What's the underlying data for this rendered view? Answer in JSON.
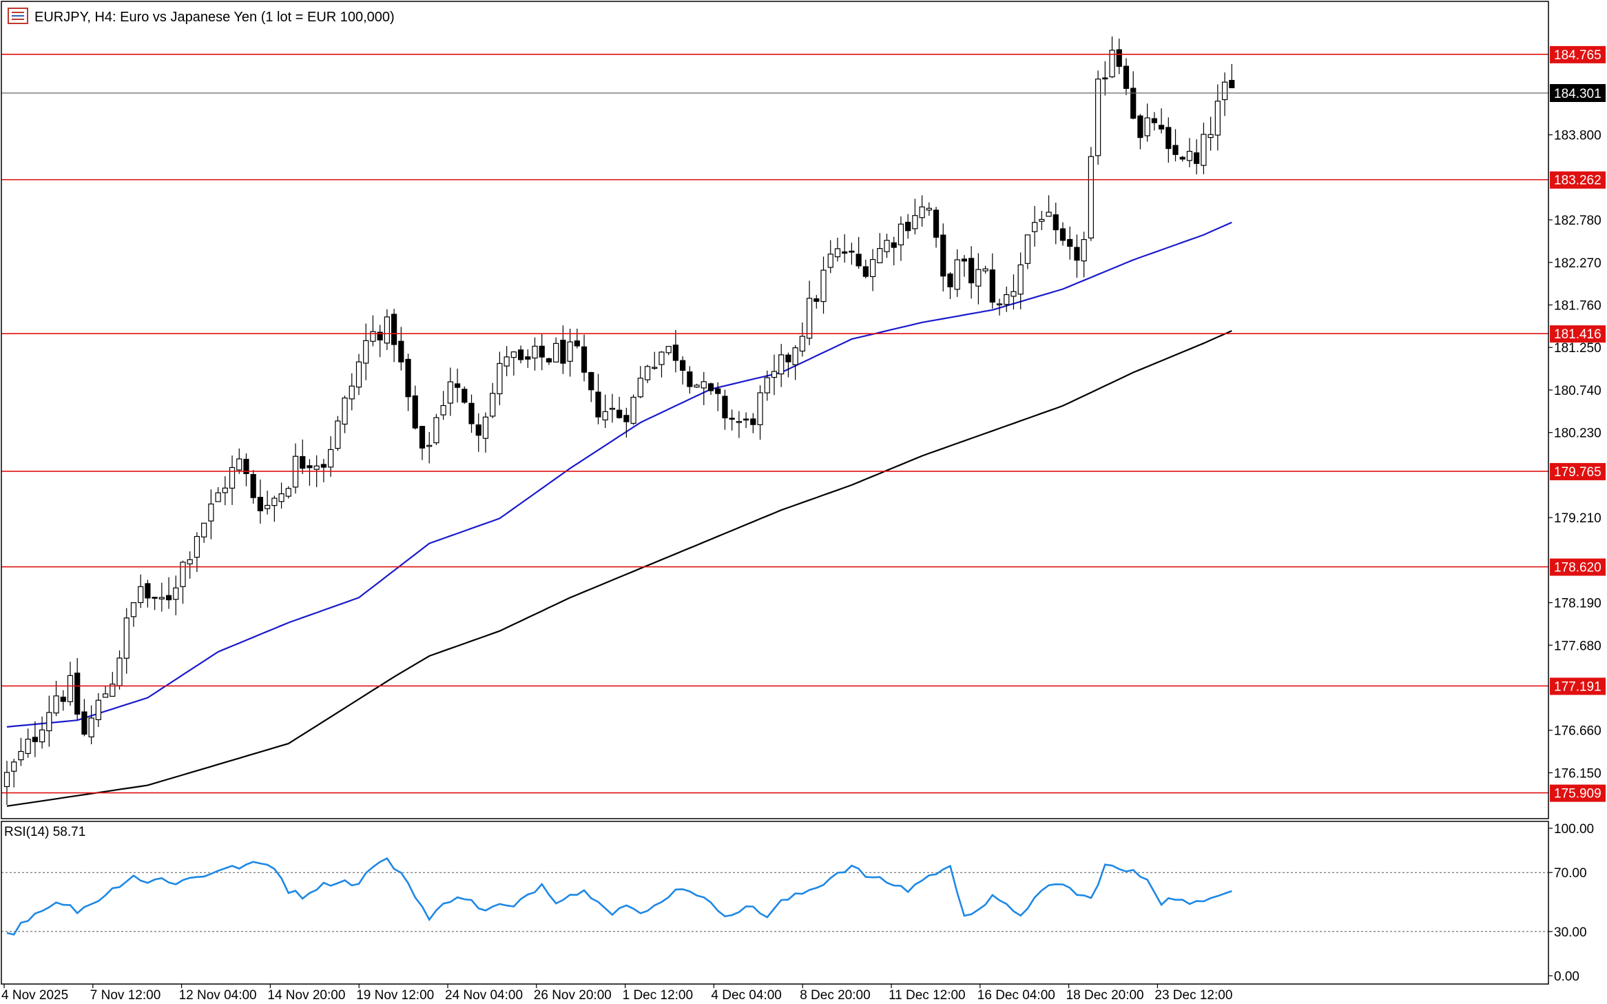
{
  "chart_data": [
    {
      "type": "candlestick",
      "title": "EURJPY, H4:  Euro vs Japanese Yen (1 lot = EUR 100,000)",
      "ylim": [
        175.6,
        185.4
      ],
      "y_ticks": [
        "176.150",
        "176.660",
        "177.680",
        "178.190",
        "179.210",
        "180.230",
        "180.740",
        "181.250",
        "181.760",
        "182.270",
        "182.780",
        "183.800"
      ],
      "x_tick_labels": [
        "4 Nov 2025",
        "7 Nov 12:00",
        "12 Nov 04:00",
        "14 Nov 20:00",
        "19 Nov 12:00",
        "24 Nov 04:00",
        "26 Nov 20:00",
        "1 Dec 12:00",
        "4 Dec 04:00",
        "8 Dec 20:00",
        "11 Dec 12:00",
        "16 Dec 04:00",
        "18 Dec 20:00",
        "23 Dec 12:00"
      ],
      "current_price": "184.301",
      "horizontal_levels": [
        "184.765",
        "183.262",
        "181.416",
        "179.765",
        "178.620",
        "177.191",
        "175.909"
      ],
      "close_path": [
        [
          0,
          176.1
        ],
        [
          3,
          176.45
        ],
        [
          5,
          176.8
        ],
        [
          7,
          177.1
        ],
        [
          9,
          177.15
        ],
        [
          11,
          176.6
        ],
        [
          13,
          176.95
        ],
        [
          15,
          177.3
        ],
        [
          17,
          177.9
        ],
        [
          19,
          178.4
        ],
        [
          21,
          178.1
        ],
        [
          23,
          178.3
        ],
        [
          25,
          178.65
        ],
        [
          27,
          179.05
        ],
        [
          29,
          179.3
        ],
        [
          31,
          179.65
        ],
        [
          33,
          179.85
        ],
        [
          35,
          179.5
        ],
        [
          37,
          179.35
        ],
        [
          39,
          179.55
        ],
        [
          41,
          179.85
        ],
        [
          43,
          179.95
        ],
        [
          45,
          179.9
        ],
        [
          47,
          180.3
        ],
        [
          49,
          180.8
        ],
        [
          51,
          181.3
        ],
        [
          53,
          181.5
        ],
        [
          55,
          181.4
        ],
        [
          57,
          180.6
        ],
        [
          59,
          179.9
        ],
        [
          61,
          180.4
        ],
        [
          63,
          180.9
        ],
        [
          65,
          180.5
        ],
        [
          67,
          180.35
        ],
        [
          69,
          180.7
        ],
        [
          71,
          181.2
        ],
        [
          73,
          181.0
        ],
        [
          75,
          181.1
        ],
        [
          77,
          181.15
        ],
        [
          79,
          181.2
        ],
        [
          81,
          181.1
        ],
        [
          83,
          180.6
        ],
        [
          85,
          180.5
        ],
        [
          87,
          180.45
        ],
        [
          89,
          180.6
        ],
        [
          91,
          181.1
        ],
        [
          93,
          181.2
        ],
        [
          95,
          181.2
        ],
        [
          97,
          180.95
        ],
        [
          99,
          180.7
        ],
        [
          101,
          180.55
        ],
        [
          103,
          180.4
        ],
        [
          105,
          180.3
        ],
        [
          107,
          180.6
        ],
        [
          109,
          180.85
        ],
        [
          111,
          181.15
        ],
        [
          113,
          181.5
        ],
        [
          115,
          181.9
        ],
        [
          117,
          182.3
        ],
        [
          119,
          182.4
        ],
        [
          121,
          182.2
        ],
        [
          123,
          182.35
        ],
        [
          125,
          182.5
        ],
        [
          127,
          182.7
        ],
        [
          129,
          182.9
        ],
        [
          131,
          182.9
        ],
        [
          133,
          182.0
        ],
        [
          135,
          182.2
        ],
        [
          137,
          182.1
        ],
        [
          139,
          182.1
        ],
        [
          141,
          181.7
        ],
        [
          143,
          182.0
        ],
        [
          145,
          182.6
        ],
        [
          147,
          182.9
        ],
        [
          149,
          182.5
        ],
        [
          151,
          182.3
        ],
        [
          153,
          182.5
        ],
        [
          155,
          184.3
        ],
        [
          157,
          184.9
        ],
        [
          159,
          184.5
        ],
        [
          161,
          183.7
        ],
        [
          163,
          184.0
        ],
        [
          165,
          183.5
        ],
        [
          167,
          183.6
        ],
        [
          169,
          183.4
        ],
        [
          171,
          183.9
        ],
        [
          173,
          184.3
        ],
        [
          174,
          184.3
        ]
      ],
      "series": [
        {
          "name": "",
          "color": "#1a1acc",
          "values": [
            [
              0,
              176.7
            ],
            [
              10,
              176.78
            ],
            [
              20,
              177.05
            ],
            [
              30,
              177.6
            ],
            [
              40,
              177.95
            ],
            [
              50,
              178.25
            ],
            [
              60,
              178.9
            ],
            [
              70,
              179.2
            ],
            [
              80,
              179.8
            ],
            [
              90,
              180.35
            ],
            [
              100,
              180.75
            ],
            [
              110,
              180.95
            ],
            [
              120,
              181.35
            ],
            [
              130,
              181.55
            ],
            [
              140,
              181.7
            ],
            [
              150,
              181.95
            ],
            [
              160,
              182.3
            ],
            [
              170,
              182.6
            ],
            [
              174,
              182.75
            ]
          ]
        },
        {
          "name": "",
          "color": "#000000",
          "values": [
            [
              0,
              175.75
            ],
            [
              20,
              176.0
            ],
            [
              40,
              176.5
            ],
            [
              55,
              177.3
            ],
            [
              60,
              177.55
            ],
            [
              70,
              177.85
            ],
            [
              80,
              178.25
            ],
            [
              90,
              178.6
            ],
            [
              100,
              178.95
            ],
            [
              110,
              179.3
            ],
            [
              120,
              179.6
            ],
            [
              130,
              179.95
            ],
            [
              140,
              180.25
            ],
            [
              150,
              180.55
            ],
            [
              160,
              180.95
            ],
            [
              170,
              181.3
            ],
            [
              174,
              181.45
            ]
          ]
        }
      ]
    },
    {
      "type": "line",
      "title": "RSI(14) 58.71",
      "ylim": [
        0,
        100
      ],
      "y_ticks": [
        "100.00",
        "70.00",
        "30.00",
        "0.00"
      ],
      "reference_levels": [
        70,
        30
      ],
      "series": [
        {
          "name": "",
          "color": "#1e88e5",
          "values": [
            [
              0,
              31
            ],
            [
              1,
              28
            ],
            [
              2,
              36
            ],
            [
              4,
              42
            ],
            [
              6,
              48
            ],
            [
              8,
              49
            ],
            [
              10,
              44
            ],
            [
              12,
              49
            ],
            [
              14,
              55
            ],
            [
              16,
              62
            ],
            [
              18,
              68
            ],
            [
              20,
              63
            ],
            [
              22,
              66
            ],
            [
              24,
              63
            ],
            [
              26,
              66
            ],
            [
              28,
              68
            ],
            [
              30,
              72
            ],
            [
              32,
              73
            ],
            [
              34,
              75
            ],
            [
              36,
              76
            ],
            [
              38,
              74
            ],
            [
              40,
              58
            ],
            [
              42,
              54
            ],
            [
              44,
              60
            ],
            [
              46,
              63
            ],
            [
              48,
              64
            ],
            [
              50,
              62
            ],
            [
              52,
              75
            ],
            [
              54,
              78
            ],
            [
              56,
              70
            ],
            [
              58,
              55
            ],
            [
              60,
              38
            ],
            [
              62,
              48
            ],
            [
              64,
              55
            ],
            [
              66,
              50
            ],
            [
              68,
              44
            ],
            [
              70,
              48
            ],
            [
              72,
              46
            ],
            [
              74,
              55
            ],
            [
              76,
              62
            ],
            [
              78,
              51
            ],
            [
              80,
              55
            ],
            [
              82,
              57
            ],
            [
              84,
              52
            ],
            [
              86,
              43
            ],
            [
              88,
              48
            ],
            [
              90,
              41
            ],
            [
              92,
              47
            ],
            [
              94,
              55
            ],
            [
              96,
              60
            ],
            [
              98,
              56
            ],
            [
              100,
              48
            ],
            [
              102,
              42
            ],
            [
              104,
              44
            ],
            [
              106,
              47
            ],
            [
              108,
              40
            ],
            [
              110,
              50
            ],
            [
              112,
              54
            ],
            [
              114,
              58
            ],
            [
              116,
              63
            ],
            [
              118,
              70
            ],
            [
              120,
              74
            ],
            [
              122,
              68
            ],
            [
              124,
              65
            ],
            [
              126,
              62
            ],
            [
              128,
              58
            ],
            [
              130,
              65
            ],
            [
              132,
              70
            ],
            [
              134,
              73
            ],
            [
              136,
              42
            ],
            [
              138,
              45
            ],
            [
              140,
              53
            ],
            [
              142,
              47
            ],
            [
              144,
              42
            ],
            [
              146,
              52
            ],
            [
              148,
              60
            ],
            [
              150,
              63
            ],
            [
              152,
              55
            ],
            [
              154,
              52
            ],
            [
              156,
              75
            ],
            [
              158,
              72
            ],
            [
              160,
              70
            ],
            [
              162,
              66
            ],
            [
              164,
              50
            ],
            [
              166,
              53
            ],
            [
              168,
              48
            ],
            [
              170,
              50
            ],
            [
              172,
              56
            ],
            [
              174,
              58.71
            ]
          ]
        }
      ]
    }
  ]
}
